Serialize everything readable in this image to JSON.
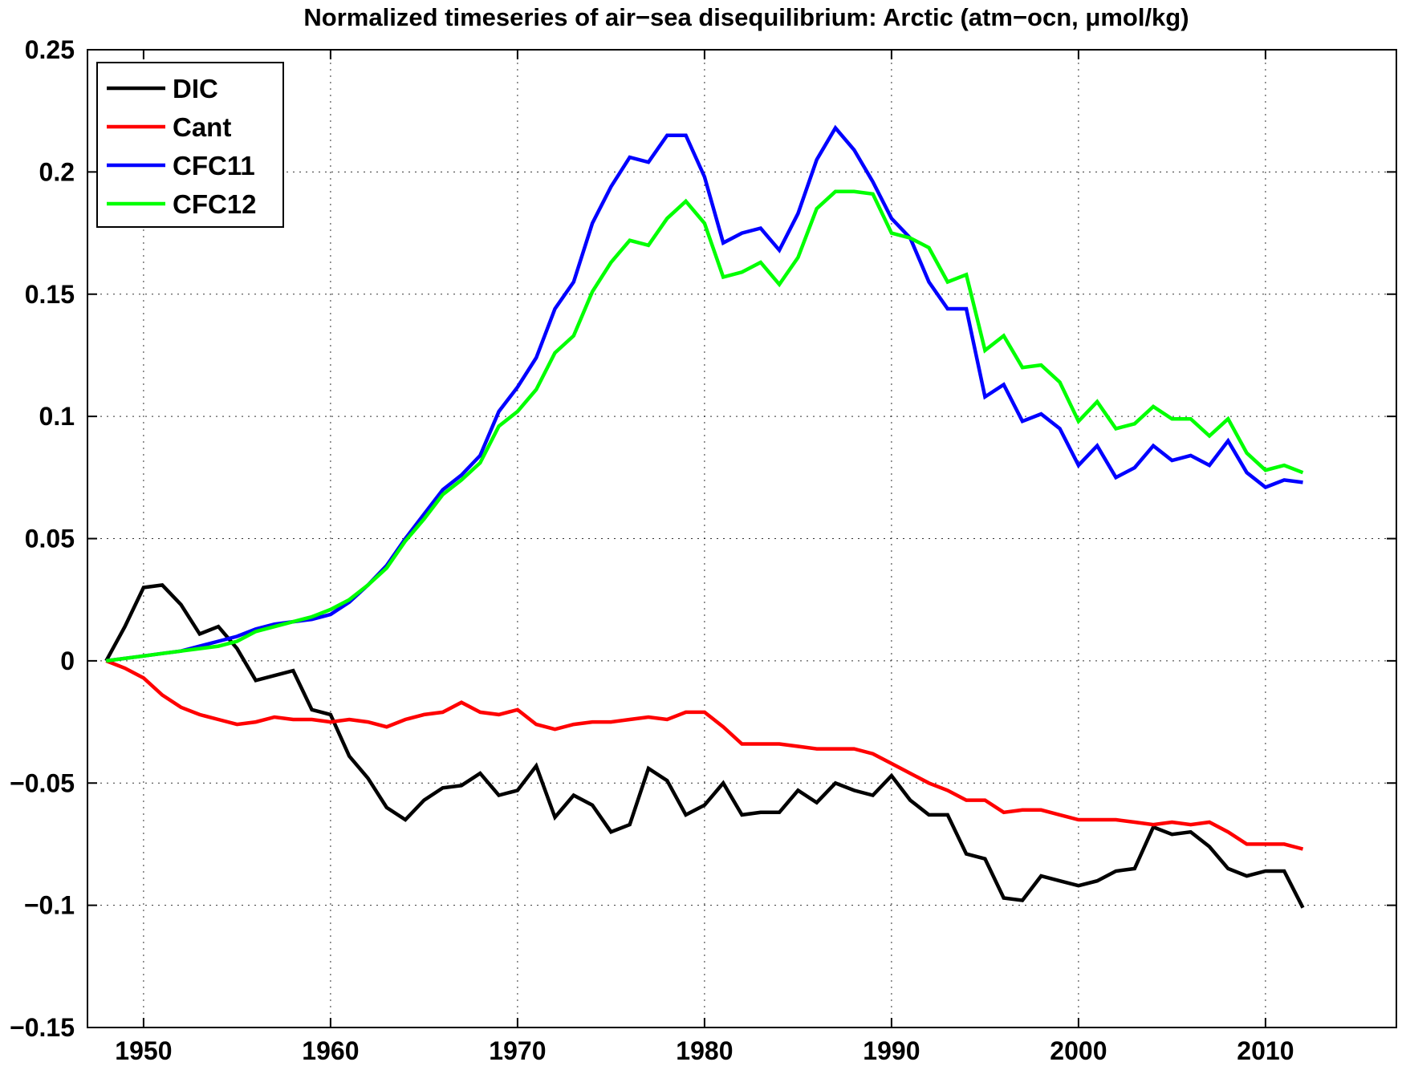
{
  "chart_data": {
    "type": "line",
    "title": "Normalized timeseries of air−sea disequilibrium: Arctic (atm−ocn, μmol/kg)",
    "xlabel": "",
    "ylabel": "",
    "xlim": [
      1947,
      2017
    ],
    "ylim": [
      -0.15,
      0.25
    ],
    "grid": true,
    "legend_position": "top-left",
    "x_ticks": [
      1950,
      1960,
      1970,
      1980,
      1990,
      2000,
      2010
    ],
    "x_tick_labels": [
      "1950",
      "1960",
      "1970",
      "1980",
      "1990",
      "2000",
      "2010"
    ],
    "y_ticks": [
      -0.15,
      -0.1,
      -0.05,
      0,
      0.05,
      0.1,
      0.15,
      0.2,
      0.25
    ],
    "y_tick_labels": [
      "−0.15",
      "−0.1",
      "−0.05",
      "0",
      "0.05",
      "0.1",
      "0.15",
      "0.2",
      "0.25"
    ],
    "x": [
      1948,
      1949,
      1950,
      1951,
      1952,
      1953,
      1954,
      1955,
      1956,
      1957,
      1958,
      1959,
      1960,
      1961,
      1962,
      1963,
      1964,
      1965,
      1966,
      1967,
      1968,
      1969,
      1970,
      1971,
      1972,
      1973,
      1974,
      1975,
      1976,
      1977,
      1978,
      1979,
      1980,
      1981,
      1982,
      1983,
      1984,
      1985,
      1986,
      1987,
      1988,
      1989,
      1990,
      1991,
      1992,
      1993,
      1994,
      1995,
      1996,
      1997,
      1998,
      1999,
      2000,
      2001,
      2002,
      2003,
      2004,
      2005,
      2006,
      2007,
      2008,
      2009,
      2010,
      2011,
      2012
    ],
    "series": [
      {
        "name": "DIC",
        "color": "#000000",
        "values": [
          0,
          0.014,
          0.03,
          0.031,
          0.023,
          0.011,
          0.014,
          0.005,
          -0.008,
          -0.006,
          -0.004,
          -0.02,
          -0.022,
          -0.039,
          -0.048,
          -0.06,
          -0.065,
          -0.057,
          -0.052,
          -0.051,
          -0.046,
          -0.055,
          -0.053,
          -0.043,
          -0.064,
          -0.055,
          -0.059,
          -0.07,
          -0.067,
          -0.044,
          -0.049,
          -0.063,
          -0.059,
          -0.05,
          -0.063,
          -0.062,
          -0.062,
          -0.053,
          -0.058,
          -0.05,
          -0.053,
          -0.055,
          -0.047,
          -0.057,
          -0.063,
          -0.063,
          -0.079,
          -0.081,
          -0.097,
          -0.098,
          -0.088,
          -0.09,
          -0.092,
          -0.09,
          -0.086,
          -0.085,
          -0.068,
          -0.071,
          -0.07,
          -0.076,
          -0.085,
          -0.088,
          -0.086,
          -0.086,
          -0.101
        ]
      },
      {
        "name": "Cant",
        "color": "#ff0000",
        "values": [
          0,
          -0.003,
          -0.007,
          -0.014,
          -0.019,
          -0.022,
          -0.024,
          -0.026,
          -0.025,
          -0.023,
          -0.024,
          -0.024,
          -0.025,
          -0.024,
          -0.025,
          -0.027,
          -0.024,
          -0.022,
          -0.021,
          -0.017,
          -0.021,
          -0.022,
          -0.02,
          -0.026,
          -0.028,
          -0.026,
          -0.025,
          -0.025,
          -0.024,
          -0.023,
          -0.024,
          -0.021,
          -0.021,
          -0.027,
          -0.034,
          -0.034,
          -0.034,
          -0.035,
          -0.036,
          -0.036,
          -0.036,
          -0.038,
          -0.042,
          -0.046,
          -0.05,
          -0.053,
          -0.057,
          -0.057,
          -0.062,
          -0.061,
          -0.061,
          -0.063,
          -0.065,
          -0.065,
          -0.065,
          -0.066,
          -0.067,
          -0.066,
          -0.067,
          -0.066,
          -0.07,
          -0.075,
          -0.075,
          -0.075,
          -0.077
        ]
      },
      {
        "name": "CFC11",
        "color": "#0000ff",
        "values": [
          0,
          0.001,
          0.002,
          0.003,
          0.004,
          0.006,
          0.008,
          0.01,
          0.013,
          0.015,
          0.016,
          0.017,
          0.019,
          0.024,
          0.031,
          0.039,
          0.05,
          0.06,
          0.07,
          0.076,
          0.084,
          0.102,
          0.112,
          0.124,
          0.144,
          0.155,
          0.179,
          0.194,
          0.206,
          0.204,
          0.215,
          0.215,
          0.198,
          0.171,
          0.175,
          0.177,
          0.168,
          0.183,
          0.205,
          0.218,
          0.209,
          0.196,
          0.181,
          0.173,
          0.155,
          0.144,
          0.144,
          0.108,
          0.113,
          0.098,
          0.101,
          0.095,
          0.08,
          0.088,
          0.075,
          0.079,
          0.088,
          0.082,
          0.084,
          0.08,
          0.09,
          0.077,
          0.071,
          0.074,
          0.073
        ]
      },
      {
        "name": "CFC12",
        "color": "#00ff00",
        "values": [
          0,
          0.001,
          0.002,
          0.003,
          0.004,
          0.005,
          0.006,
          0.008,
          0.012,
          0.014,
          0.016,
          0.018,
          0.021,
          0.025,
          0.031,
          0.038,
          0.049,
          0.058,
          0.068,
          0.074,
          0.081,
          0.096,
          0.102,
          0.111,
          0.126,
          0.133,
          0.151,
          0.163,
          0.172,
          0.17,
          0.181,
          0.188,
          0.179,
          0.157,
          0.159,
          0.163,
          0.154,
          0.165,
          0.185,
          0.192,
          0.192,
          0.191,
          0.175,
          0.173,
          0.169,
          0.155,
          0.158,
          0.127,
          0.133,
          0.12,
          0.121,
          0.114,
          0.098,
          0.106,
          0.095,
          0.097,
          0.104,
          0.099,
          0.099,
          0.092,
          0.099,
          0.085,
          0.078,
          0.08,
          0.077
        ]
      }
    ]
  }
}
